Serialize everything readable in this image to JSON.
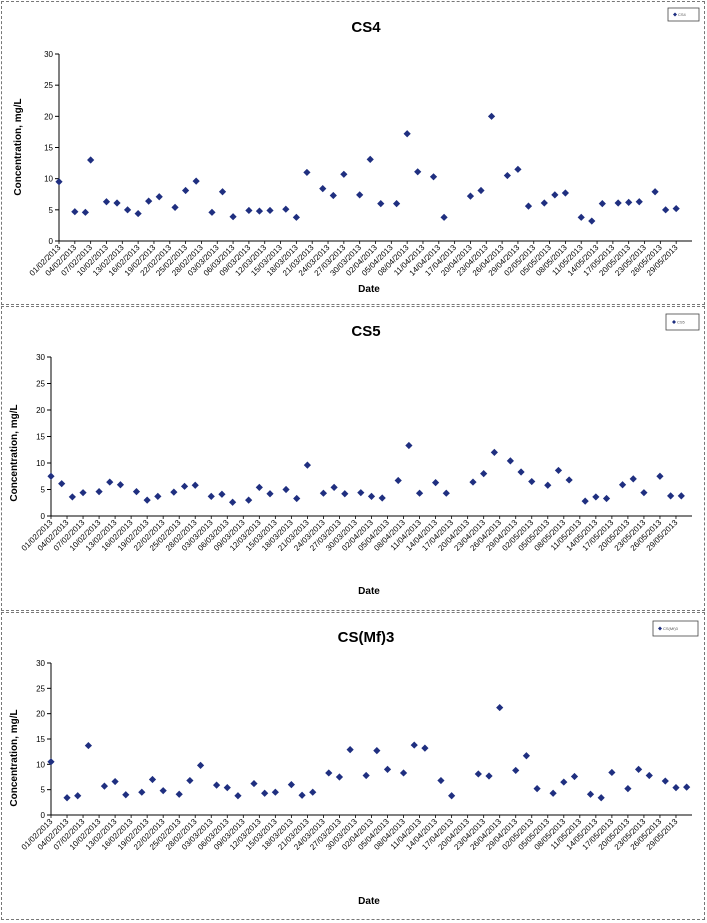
{
  "dates": [
    "01/02/2013",
    "04/02/2013",
    "07/02/2013",
    "10/02/2013",
    "13/02/2013",
    "16/02/2013",
    "19/02/2013",
    "22/02/2013",
    "25/02/2013",
    "28/02/2013",
    "03/03/2013",
    "06/03/2013",
    "09/03/2013",
    "12/03/2013",
    "15/03/2013",
    "18/03/2013",
    "21/03/2013",
    "24/03/2013",
    "27/03/2013",
    "30/03/2013",
    "02/04/2013",
    "05/04/2013",
    "08/04/2013",
    "11/04/2013",
    "14/04/2013",
    "17/04/2013",
    "20/04/2013",
    "23/04/2013",
    "26/04/2013",
    "29/04/2013",
    "02/05/2013",
    "05/05/2013",
    "08/05/2013",
    "11/05/2013",
    "14/05/2013",
    "17/05/2013",
    "20/05/2013",
    "23/05/2013",
    "26/05/2013",
    "29/05/2013"
  ],
  "chart_data": [
    {
      "type": "scatter",
      "title": "CS4",
      "legend": "CS4",
      "legend_position": "top-right",
      "xlabel": "Date",
      "ylabel": "Concentration, mg/L",
      "ylim": [
        0,
        30
      ],
      "yticks": [
        0,
        5,
        10,
        15,
        20,
        25,
        30
      ],
      "grid": false,
      "color": "#1f2f80",
      "points": [
        [
          "01/02/2013",
          9.5
        ],
        [
          "04/02/2013",
          4.7
        ],
        [
          "06/02/2013",
          4.6
        ],
        [
          "07/02/2013",
          13
        ],
        [
          "10/02/2013",
          6.3
        ],
        [
          "12/02/2013",
          6.1
        ],
        [
          "14/02/2013",
          5
        ],
        [
          "16/02/2013",
          4.4
        ],
        [
          "18/02/2013",
          6.4
        ],
        [
          "20/02/2013",
          7.1
        ],
        [
          "23/02/2013",
          5.4
        ],
        [
          "25/02/2013",
          8.1
        ],
        [
          "27/02/2013",
          9.6
        ],
        [
          "02/03/2013",
          4.6
        ],
        [
          "04/03/2013",
          7.9
        ],
        [
          "06/03/2013",
          3.9
        ],
        [
          "09/03/2013",
          4.9
        ],
        [
          "11/03/2013",
          4.8
        ],
        [
          "13/03/2013",
          4.9
        ],
        [
          "16/03/2013",
          5.1
        ],
        [
          "18/03/2013",
          3.8
        ],
        [
          "20/03/2013",
          11
        ],
        [
          "23/03/2013",
          8.4
        ],
        [
          "25/03/2013",
          7.3
        ],
        [
          "27/03/2013",
          10.7
        ],
        [
          "30/03/2013",
          7.4
        ],
        [
          "01/04/2013",
          13.1
        ],
        [
          "03/04/2013",
          6
        ],
        [
          "06/04/2013",
          6
        ],
        [
          "08/04/2013",
          17.2
        ],
        [
          "10/04/2013",
          11.1
        ],
        [
          "13/04/2013",
          10.3
        ],
        [
          "15/04/2013",
          3.8
        ],
        [
          "20/04/2013",
          7.2
        ],
        [
          "22/04/2013",
          8.1
        ],
        [
          "24/04/2013",
          20
        ],
        [
          "27/04/2013",
          10.5
        ],
        [
          "29/04/2013",
          11.5
        ],
        [
          "01/05/2013",
          5.6
        ],
        [
          "04/05/2013",
          6.1
        ],
        [
          "06/05/2013",
          7.4
        ],
        [
          "08/05/2013",
          7.7
        ],
        [
          "11/05/2013",
          3.8
        ],
        [
          "13/05/2013",
          3.2
        ],
        [
          "15/05/2013",
          6
        ],
        [
          "18/05/2013",
          6.1
        ],
        [
          "20/05/2013",
          6.2
        ],
        [
          "22/05/2013",
          6.3
        ],
        [
          "25/05/2013",
          7.9
        ],
        [
          "27/05/2013",
          5
        ],
        [
          "29/05/2013",
          5.2
        ]
      ]
    },
    {
      "type": "scatter",
      "title": "CS5",
      "legend": "CS5",
      "legend_position": "top-right",
      "xlabel": "Date",
      "ylabel": "Concentration, mg/L",
      "ylim": [
        0,
        30
      ],
      "yticks": [
        0,
        5,
        10,
        15,
        20,
        25,
        30
      ],
      "grid": false,
      "color": "#1f2f80",
      "points": [
        [
          "01/02/2013",
          7.5
        ],
        [
          "03/02/2013",
          6.1
        ],
        [
          "05/02/2013",
          3.6
        ],
        [
          "07/02/2013",
          4.4
        ],
        [
          "10/02/2013",
          4.6
        ],
        [
          "12/02/2013",
          6.4
        ],
        [
          "14/02/2013",
          5.9
        ],
        [
          "17/02/2013",
          4.6
        ],
        [
          "19/02/2013",
          3
        ],
        [
          "21/02/2013",
          3.7
        ],
        [
          "24/02/2013",
          4.5
        ],
        [
          "26/02/2013",
          5.6
        ],
        [
          "28/02/2013",
          5.8
        ],
        [
          "03/03/2013",
          3.7
        ],
        [
          "05/03/2013",
          4.1
        ],
        [
          "07/03/2013",
          2.6
        ],
        [
          "10/03/2013",
          3
        ],
        [
          "12/03/2013",
          5.4
        ],
        [
          "14/03/2013",
          4.2
        ],
        [
          "17/03/2013",
          5
        ],
        [
          "19/03/2013",
          3.3
        ],
        [
          "21/03/2013",
          9.6
        ],
        [
          "24/03/2013",
          4.3
        ],
        [
          "26/03/2013",
          5.4
        ],
        [
          "28/03/2013",
          4.2
        ],
        [
          "31/03/2013",
          4.4
        ],
        [
          "02/04/2013",
          3.7
        ],
        [
          "04/04/2013",
          3.4
        ],
        [
          "07/04/2013",
          6.7
        ],
        [
          "09/04/2013",
          13.3
        ],
        [
          "11/04/2013",
          4.3
        ],
        [
          "14/04/2013",
          6.3
        ],
        [
          "16/04/2013",
          4.3
        ],
        [
          "21/04/2013",
          6.4
        ],
        [
          "23/04/2013",
          8
        ],
        [
          "25/04/2013",
          12
        ],
        [
          "28/04/2013",
          10.4
        ],
        [
          "30/04/2013",
          8.3
        ],
        [
          "02/05/2013",
          6.5
        ],
        [
          "05/05/2013",
          5.8
        ],
        [
          "07/05/2013",
          8.6
        ],
        [
          "09/05/2013",
          6.8
        ],
        [
          "12/05/2013",
          2.8
        ],
        [
          "14/05/2013",
          3.6
        ],
        [
          "16/05/2013",
          3.3
        ],
        [
          "19/05/2013",
          5.9
        ],
        [
          "21/05/2013",
          7
        ],
        [
          "23/05/2013",
          4.4
        ],
        [
          "26/05/2013",
          7.5
        ],
        [
          "28/05/2013",
          3.8
        ],
        [
          "30/05/2013",
          3.8
        ]
      ]
    },
    {
      "type": "scatter",
      "title": "CS(Mf)3",
      "legend": "CS(Mf)3",
      "legend_position": "top-right",
      "xlabel": "Date",
      "ylabel": "Concentration, mg/L",
      "ylim": [
        0,
        30
      ],
      "yticks": [
        0,
        5,
        10,
        15,
        20,
        25,
        30
      ],
      "grid": false,
      "color": "#1f2f80",
      "points": [
        [
          "01/02/2013",
          10.5
        ],
        [
          "04/02/2013",
          3.4
        ],
        [
          "06/02/2013",
          3.8
        ],
        [
          "08/02/2013",
          13.7
        ],
        [
          "11/02/2013",
          5.7
        ],
        [
          "13/02/2013",
          6.6
        ],
        [
          "15/02/2013",
          4
        ],
        [
          "18/02/2013",
          4.5
        ],
        [
          "20/02/2013",
          7
        ],
        [
          "22/02/2013",
          4.8
        ],
        [
          "25/02/2013",
          4.1
        ],
        [
          "27/02/2013",
          6.8
        ],
        [
          "01/03/2013",
          9.8
        ],
        [
          "04/03/2013",
          5.9
        ],
        [
          "06/03/2013",
          5.4
        ],
        [
          "08/03/2013",
          3.8
        ],
        [
          "11/03/2013",
          6.2
        ],
        [
          "13/03/2013",
          4.3
        ],
        [
          "15/03/2013",
          4.5
        ],
        [
          "18/03/2013",
          6
        ],
        [
          "20/03/2013",
          3.9
        ],
        [
          "22/03/2013",
          4.5
        ],
        [
          "25/03/2013",
          8.3
        ],
        [
          "27/03/2013",
          7.5
        ],
        [
          "29/03/2013",
          12.9
        ],
        [
          "01/04/2013",
          7.8
        ],
        [
          "03/04/2013",
          12.7
        ],
        [
          "05/04/2013",
          9
        ],
        [
          "08/04/2013",
          8.3
        ],
        [
          "10/04/2013",
          13.8
        ],
        [
          "12/04/2013",
          13.2
        ],
        [
          "15/04/2013",
          6.8
        ],
        [
          "17/04/2013",
          3.8
        ],
        [
          "22/04/2013",
          8.1
        ],
        [
          "24/04/2013",
          7.7
        ],
        [
          "26/04/2013",
          21.2
        ],
        [
          "29/04/2013",
          8.8
        ],
        [
          "01/05/2013",
          11.7
        ],
        [
          "03/05/2013",
          5.2
        ],
        [
          "06/05/2013",
          4.3
        ],
        [
          "08/05/2013",
          6.5
        ],
        [
          "10/05/2013",
          7.6
        ],
        [
          "13/05/2013",
          4.1
        ],
        [
          "15/05/2013",
          3.4
        ],
        [
          "17/05/2013",
          8.4
        ],
        [
          "20/05/2013",
          5.2
        ],
        [
          "22/05/2013",
          9
        ],
        [
          "24/05/2013",
          7.8
        ],
        [
          "27/05/2013",
          6.7
        ],
        [
          "29/05/2013",
          5.4
        ],
        [
          "31/05/2013",
          5.5
        ]
      ]
    }
  ]
}
